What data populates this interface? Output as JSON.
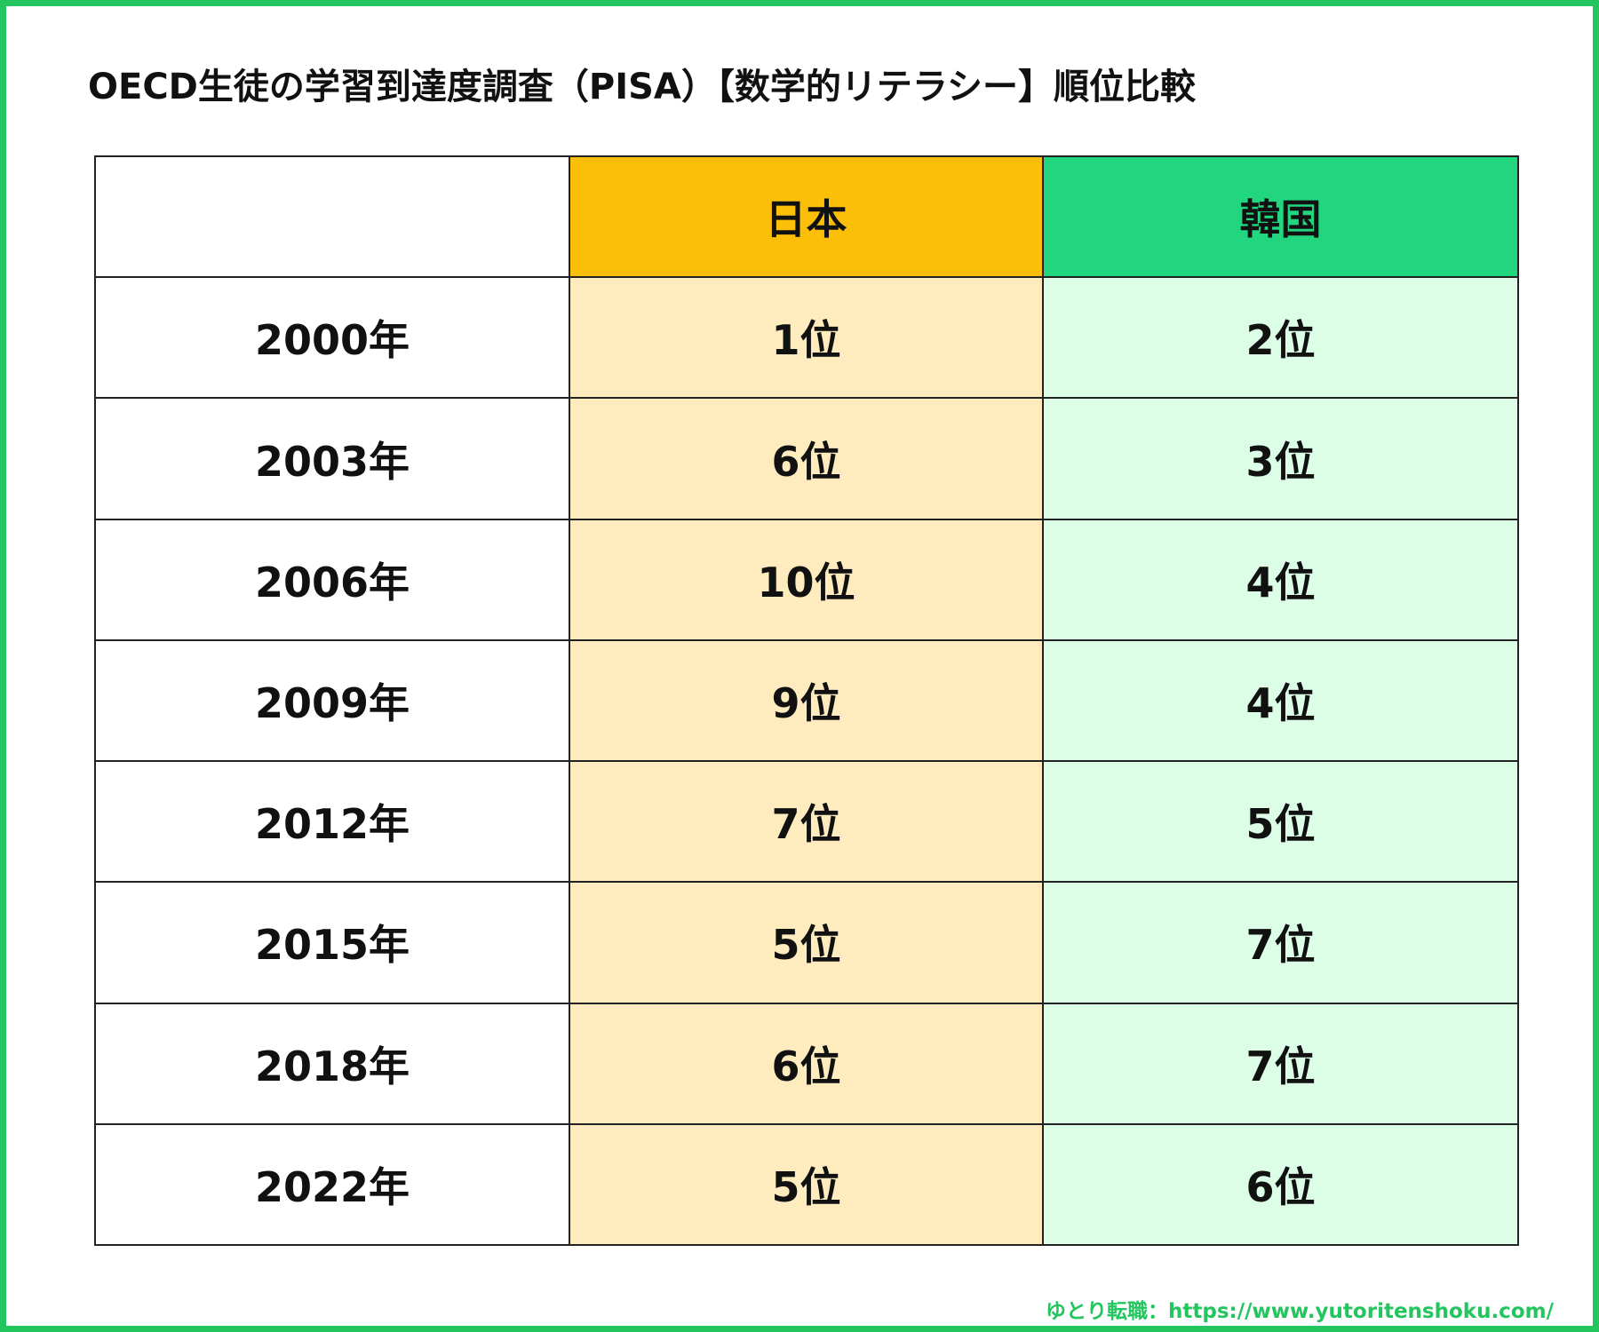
{
  "title": "OECD生徒の学習到達度調査（PISA）【数学的リテラシー】順位比較",
  "table": {
    "header": [
      "日本",
      "韓国"
    ],
    "rows": [
      [
        "2000年",
        "1位",
        "2位"
      ],
      [
        "2003年",
        "6位",
        "3位"
      ],
      [
        "2006年",
        "10位",
        "4位"
      ],
      [
        "2009年",
        "9位",
        "4位"
      ],
      [
        "2012年",
        "7位",
        "5位"
      ],
      [
        "2015年",
        "5位",
        "7位"
      ],
      [
        "2018年",
        "6位",
        "7位"
      ],
      [
        "2022年",
        "5位",
        "6位"
      ]
    ]
  },
  "footer": "ゆとり転職：https://www.yutoritenshoku.com/"
}
